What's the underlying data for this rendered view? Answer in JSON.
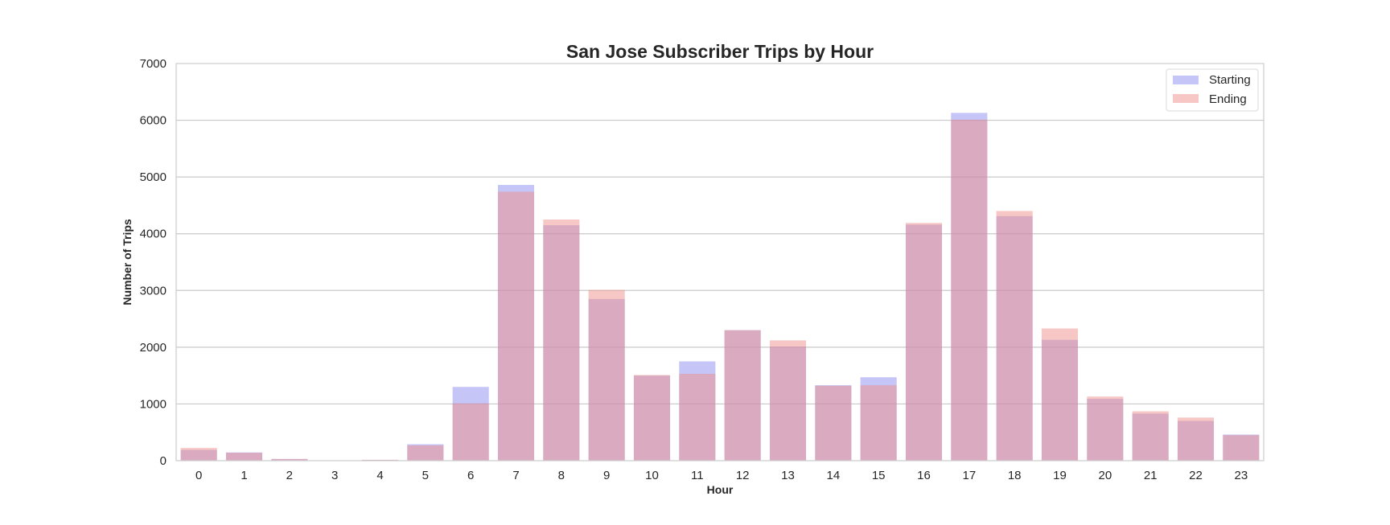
{
  "chart_data": {
    "type": "bar",
    "title": "San Jose Subscriber Trips by Hour",
    "xlabel": "Hour",
    "ylabel": "Number of Trips",
    "ylim": [
      0,
      7000
    ],
    "yticks": [
      0,
      1000,
      2000,
      3000,
      4000,
      5000,
      6000,
      7000
    ],
    "grid": true,
    "legend_position": "top-right",
    "categories": [
      "0",
      "1",
      "2",
      "3",
      "4",
      "5",
      "6",
      "7",
      "8",
      "9",
      "10",
      "11",
      "12",
      "13",
      "14",
      "15",
      "16",
      "17",
      "18",
      "19",
      "20",
      "21",
      "22",
      "23"
    ],
    "series": [
      {
        "name": "Starting",
        "color": "#8c8cf0",
        "values": [
          190,
          145,
          30,
          5,
          15,
          290,
          1300,
          4860,
          4150,
          2850,
          1500,
          1750,
          2300,
          2010,
          1330,
          1470,
          4160,
          6130,
          4310,
          2130,
          1090,
          830,
          700,
          460
        ]
      },
      {
        "name": "Ending",
        "color": "#ed8f8a",
        "values": [
          225,
          140,
          30,
          5,
          15,
          270,
          1010,
          4740,
          4250,
          3010,
          1510,
          1530,
          2300,
          2120,
          1320,
          1330,
          4190,
          6010,
          4400,
          2330,
          1130,
          870,
          760,
          450
        ]
      }
    ]
  }
}
